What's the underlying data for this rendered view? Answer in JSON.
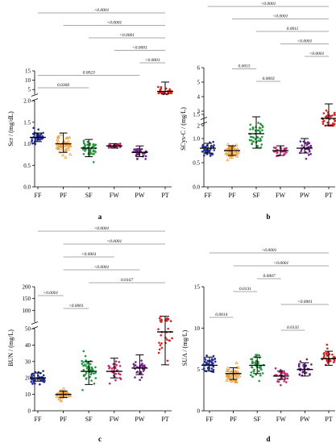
{
  "colors": {
    "FF": "#1f2d9e",
    "PF": "#f0901c",
    "SF": "#1f9a3a",
    "FW": "#c8246f",
    "PW": "#6f1f8c",
    "PT": "#e0201c"
  },
  "chart_data": [
    {
      "type": "scatter",
      "panel": "a",
      "ylabel": "Scr / (mg/dL)",
      "groups": [
        "FF",
        "PF",
        "SF",
        "FW",
        "PW",
        "PT"
      ],
      "yticks": [
        "0.0",
        "0.5",
        "1.0",
        "1.5",
        "2.0",
        "5",
        "10",
        "15"
      ],
      "pvalues": [
        {
          "from": "FF",
          "to": "PT",
          "p": "<0.0001"
        },
        {
          "from": "PF",
          "to": "PT",
          "p": "<0.0001"
        },
        {
          "from": "SF",
          "to": "PT",
          "p": "<0.0001"
        },
        {
          "from": "FW",
          "to": "PT",
          "p": "<0.0001"
        },
        {
          "from": "PW",
          "to": "PT",
          "p": "<0.0001"
        },
        {
          "from": "FF",
          "to": "PW",
          "p": "0.0023"
        },
        {
          "from": "FF",
          "to": "SF",
          "p": "0.0360"
        }
      ],
      "summary": [
        {
          "group": "FF",
          "median": 1.15,
          "q1": 1.05,
          "q3": 1.25
        },
        {
          "group": "PF",
          "median": 1.0,
          "q1": 0.8,
          "q3": 1.25
        },
        {
          "group": "SF",
          "median": 0.9,
          "q1": 0.7,
          "q3": 1.1
        },
        {
          "group": "FW",
          "median": 0.95,
          "q1": 0.9,
          "q3": 1.0
        },
        {
          "group": "PW",
          "median": 0.8,
          "q1": 0.7,
          "q3": 0.95
        },
        {
          "group": "PT",
          "median": 4.0,
          "q1": 2.6,
          "q3": 9.0
        }
      ]
    },
    {
      "type": "scatter",
      "panel": "b",
      "ylabel": "SCys-C / (mg/L)",
      "groups": [
        "FF",
        "PF",
        "SF",
        "FW",
        "PW",
        "PT"
      ],
      "yticks": [
        "0.0",
        "0.5",
        "1.0",
        "1.5",
        "2",
        "3",
        "4",
        "5",
        "6"
      ],
      "pvalues": [
        {
          "from": "FF",
          "to": "PT",
          "p": "<0.0001"
        },
        {
          "from": "PF",
          "to": "PT",
          "p": "<0.0001"
        },
        {
          "from": "SF",
          "to": "PT",
          "p": "0.0011"
        },
        {
          "from": "FW",
          "to": "PT",
          "p": "<0.0001"
        },
        {
          "from": "PW",
          "to": "PT",
          "p": "<0.0001"
        },
        {
          "from": "PF",
          "to": "SF",
          "p": "0.0015"
        },
        {
          "from": "SF",
          "to": "FW",
          "p": "0.0003"
        }
      ],
      "summary": [
        {
          "group": "FF",
          "median": 0.8,
          "q1": 0.7,
          "q3": 0.9
        },
        {
          "group": "PF",
          "median": 0.75,
          "q1": 0.65,
          "q3": 0.85
        },
        {
          "group": "SF",
          "median": 1.1,
          "q1": 0.8,
          "q3": 1.45
        },
        {
          "group": "FW",
          "median": 0.75,
          "q1": 0.65,
          "q3": 0.85
        },
        {
          "group": "PW",
          "median": 0.8,
          "q1": 0.7,
          "q3": 1.0
        },
        {
          "group": "PT",
          "median": 2.5,
          "q1": 1.7,
          "q3": 3.5
        }
      ]
    },
    {
      "type": "scatter",
      "panel": "c",
      "ylabel": "BUN / (mg/L)",
      "groups": [
        "FF",
        "PF",
        "SF",
        "FW",
        "PW",
        "PT"
      ],
      "yticks": [
        "0",
        "10",
        "20",
        "30",
        "40",
        "50",
        "100",
        "150",
        "200"
      ],
      "pvalues": [
        {
          "from": "FF",
          "to": "PT",
          "p": "<0.0001"
        },
        {
          "from": "PF",
          "to": "PT",
          "p": "<0.0001"
        },
        {
          "from": "PF",
          "to": "FW",
          "p": "<0.0001"
        },
        {
          "from": "PF",
          "to": "PW",
          "p": "<0.0001"
        },
        {
          "from": "SF",
          "to": "PT",
          "p": "0.0167"
        },
        {
          "from": "FF",
          "to": "PF",
          "p": "<0.0001"
        },
        {
          "from": "PF",
          "to": "SF",
          "p": "<0.0001"
        }
      ],
      "summary": [
        {
          "group": "FF",
          "median": 20,
          "q1": 18,
          "q3": 23
        },
        {
          "group": "PF",
          "median": 10,
          "q1": 8,
          "q3": 12
        },
        {
          "group": "SF",
          "median": 24,
          "q1": 16,
          "q3": 30
        },
        {
          "group": "FW",
          "median": 24,
          "q1": 20,
          "q3": 32
        },
        {
          "group": "PW",
          "median": 26,
          "q1": 22,
          "q3": 34
        },
        {
          "group": "PT",
          "median": 48,
          "q1": 28,
          "q3": 75
        }
      ]
    },
    {
      "type": "scatter",
      "panel": "d",
      "ylabel": "SUA / (mg/L)",
      "groups": [
        "FF",
        "PF",
        "SF",
        "FW",
        "PW",
        "PT"
      ],
      "ylim": [
        0,
        15
      ],
      "yticks": [
        "0",
        "5",
        "10",
        "15"
      ],
      "pvalues": [
        {
          "from": "FF",
          "to": "PT",
          "p": "<0.0001"
        },
        {
          "from": "PF",
          "to": "PT",
          "p": "<0.0001"
        },
        {
          "from": "SF",
          "to": "FW",
          "p": "0.0007"
        },
        {
          "from": "PF",
          "to": "SF",
          "p": "0.0131"
        },
        {
          "from": "FW",
          "to": "PT",
          "p": "<0.0001"
        },
        {
          "from": "FF",
          "to": "PF",
          "p": "0.0014"
        },
        {
          "from": "FW",
          "to": "PW",
          "p": "0.0135"
        }
      ],
      "summary": [
        {
          "group": "FF",
          "median": 5.5,
          "q1": 4.8,
          "q3": 6.5
        },
        {
          "group": "PF",
          "median": 4.5,
          "q1": 3.8,
          "q3": 5.2
        },
        {
          "group": "SF",
          "median": 5.5,
          "q1": 4.5,
          "q3": 6.5
        },
        {
          "group": "FW",
          "median": 4.2,
          "q1": 3.8,
          "q3": 4.8
        },
        {
          "group": "PW",
          "median": 5.0,
          "q1": 4.2,
          "q3": 5.8
        },
        {
          "group": "PT",
          "median": 6.3,
          "q1": 5.5,
          "q3": 7.2
        }
      ]
    }
  ]
}
